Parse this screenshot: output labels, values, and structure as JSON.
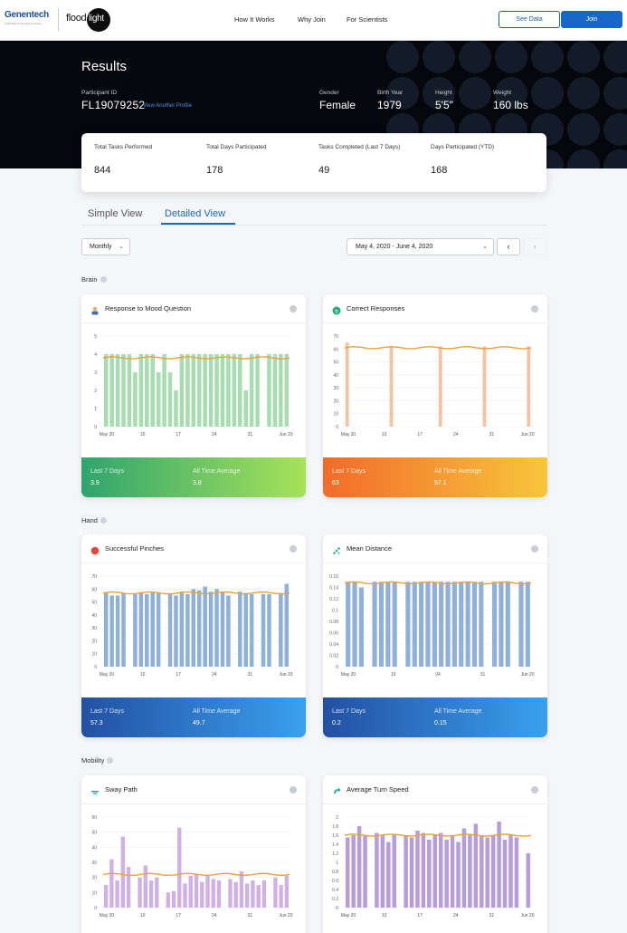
{
  "nav": {
    "brand": "Genentech",
    "brand_sub": "A Member of the Roche Group",
    "app_logo_left": "flood",
    "app_logo_right": "light",
    "links": [
      "How It Works",
      "Why Join",
      "For Scientists"
    ],
    "see_data": "See Data",
    "join": "Join"
  },
  "hero": {
    "title": "Results",
    "participant_id_label": "Participant ID",
    "participant_id": "FL19079252",
    "view_another": "View Another Profile",
    "stats": [
      {
        "label": "Gender",
        "value": "Female"
      },
      {
        "label": "Birth Year",
        "value": "1979"
      },
      {
        "label": "Height",
        "value": "5'5\""
      },
      {
        "label": "Weight",
        "value": "160 lbs"
      }
    ]
  },
  "summary": [
    {
      "label": "Total Tasks Performed",
      "value": "844"
    },
    {
      "label": "Total Days Participated",
      "value": "178"
    },
    {
      "label": "Tasks Completed (Last 7 Days)",
      "value": "49"
    },
    {
      "label": "Days Participated (YTD)",
      "value": "168"
    }
  ],
  "tabs": {
    "simple": "Simple View",
    "detailed": "Detailed View"
  },
  "controls": {
    "period": "Monthly",
    "date_range": "May 4, 2020 - June 4, 2020",
    "prev": "‹",
    "next": "›"
  },
  "sections": {
    "brain": "Brain",
    "hand": "Hand",
    "mobility": "Mobility"
  },
  "colors": {
    "trend": "#e9a23b",
    "brand": "#1667c8"
  },
  "cards": [
    {
      "key": "mood",
      "title": "Response to Mood Question",
      "icon": "person-icon",
      "foot_left_label": "Last 7 Days",
      "foot_left_value": "3.9",
      "foot_right_label": "All Time Average",
      "foot_right_value": "3.8",
      "gradient": [
        "#2fa56f",
        "#a7e25a"
      ]
    },
    {
      "key": "correct",
      "title": "Correct Responses",
      "icon": "symbol-icon",
      "foot_left_label": "Last 7 Days",
      "foot_left_value": "63",
      "foot_right_label": "All Time Average",
      "foot_right_value": "57.1",
      "gradient": [
        "#f26b2a",
        "#f8c63c"
      ]
    },
    {
      "key": "pinch",
      "title": "Successful Pinches",
      "icon": "red-dot-icon",
      "foot_left_label": "Last 7 Days",
      "foot_left_value": "57.3",
      "foot_right_label": "All Time Average",
      "foot_right_value": "49.7",
      "gradient": [
        "#2350a3",
        "#3aa0ee"
      ]
    },
    {
      "key": "distance",
      "title": "Mean Distance",
      "icon": "dots-icon",
      "foot_left_label": "Last 7 Days",
      "foot_left_value": "0.2",
      "foot_right_label": "All Time Average",
      "foot_right_value": "0.15",
      "gradient": [
        "#2350a3",
        "#3aa0ee"
      ]
    },
    {
      "key": "sway",
      "title": "Sway Path",
      "icon": "sway-icon"
    },
    {
      "key": "turn",
      "title": "Average Turn Speed",
      "icon": "turn-icon"
    }
  ],
  "chart_data": [
    {
      "type": "bar",
      "title": "Response to Mood Question",
      "x_ticks": [
        "May 20",
        "10",
        "17",
        "24",
        "31",
        "Jun 20"
      ],
      "ylim": [
        0,
        5
      ],
      "y_ticks": [
        0,
        1,
        2,
        3,
        4,
        5
      ],
      "values": [
        4,
        4,
        4,
        4,
        4,
        3,
        4,
        4,
        4,
        3,
        4,
        3,
        2,
        4,
        4,
        4,
        4,
        4,
        4,
        4,
        4,
        4,
        4,
        4,
        2,
        4,
        4,
        0,
        4,
        4,
        4,
        4
      ],
      "trend": 3.8,
      "bar_color": "#a8dcb1"
    },
    {
      "type": "bar",
      "title": "Correct Responses",
      "x_ticks": [
        "May 20",
        "10",
        "17",
        "24",
        "31",
        "Jun 20"
      ],
      "ylim": [
        0,
        70
      ],
      "y_ticks": [
        0,
        10,
        20,
        30,
        40,
        50,
        60,
        70
      ],
      "values": [
        65,
        0,
        0,
        0,
        0,
        0,
        0,
        0,
        0,
        62,
        0,
        0,
        0,
        0,
        0,
        0,
        0,
        0,
        0,
        62,
        0,
        0,
        0,
        0,
        0,
        0,
        0,
        0,
        62,
        0,
        0,
        0,
        0,
        0,
        0,
        0,
        0,
        62
      ],
      "trend": 61,
      "bar_color": "#f4c1a2"
    },
    {
      "type": "bar",
      "title": "Successful Pinches",
      "x_ticks": [
        "May 20",
        "10",
        "17",
        "24",
        "31",
        "Jun 20"
      ],
      "ylim": [
        0,
        70
      ],
      "y_ticks": [
        0,
        10,
        20,
        30,
        40,
        50,
        60,
        70
      ],
      "values": [
        57,
        55,
        55,
        57,
        0,
        56,
        57,
        56,
        58,
        57,
        0,
        56,
        55,
        58,
        56,
        60,
        59,
        62,
        58,
        60,
        58,
        55,
        0,
        58,
        57,
        56,
        0,
        56,
        56,
        0,
        57,
        64
      ],
      "trend": 57,
      "bar_color": "#8fb0d8"
    },
    {
      "type": "bar",
      "title": "Mean Distance",
      "x_ticks": [
        "May 20",
        "19",
        "24",
        "31",
        "Jun 20"
      ],
      "ylim": [
        0,
        0.16
      ],
      "y_ticks": [
        0,
        0.02,
        0.04,
        0.06,
        0.08,
        0.1,
        0.12,
        0.14,
        0.16
      ],
      "values": [
        0.15,
        0.15,
        0.14,
        0,
        0.15,
        0.15,
        0.15,
        0.15,
        0,
        0.15,
        0.15,
        0.15,
        0.15,
        0.15,
        0.15,
        0.15,
        0.15,
        0.15,
        0.15,
        0.15,
        0.15,
        0,
        0.15,
        0.15,
        0.15,
        0,
        0.15,
        0.15
      ],
      "trend": 0.148,
      "bar_color": "#8fb0d8"
    },
    {
      "type": "bar",
      "title": "Sway Path",
      "x_ticks": [
        "May 20",
        "10",
        "17",
        "24",
        "31",
        "Jun 20"
      ],
      "ylim": [
        0,
        60
      ],
      "y_ticks": [
        0,
        10,
        20,
        30,
        40,
        50,
        60
      ],
      "values": [
        15,
        32,
        18,
        47,
        27,
        0,
        20,
        28,
        18,
        20,
        0,
        10,
        11,
        53,
        16,
        21,
        22,
        17,
        21,
        19,
        18,
        0,
        19,
        17,
        24,
        16,
        18,
        15,
        18,
        0,
        20,
        15,
        21
      ],
      "trend": 22,
      "bar_color": "#cfb1e3"
    },
    {
      "type": "bar",
      "title": "Average Turn Speed",
      "x_ticks": [
        "May 20",
        "10",
        "17",
        "24",
        "31",
        "Jun 20"
      ],
      "ylim": [
        0,
        2.0
      ],
      "y_ticks": [
        0,
        0.2,
        0.4,
        0.6,
        0.8,
        1.0,
        1.2,
        1.4,
        1.6,
        1.8,
        2.0
      ],
      "values": [
        1.55,
        1.6,
        1.8,
        1.6,
        0,
        1.65,
        1.6,
        1.45,
        1.6,
        0,
        1.6,
        1.55,
        1.7,
        1.65,
        1.5,
        1.6,
        1.65,
        1.5,
        1.6,
        1.45,
        1.75,
        1.6,
        1.85,
        1.6,
        1.55,
        1.6,
        1.9,
        1.5,
        1.6,
        1.55,
        0,
        1.2
      ],
      "trend": 1.6,
      "bar_color": "#b89ed9"
    }
  ]
}
